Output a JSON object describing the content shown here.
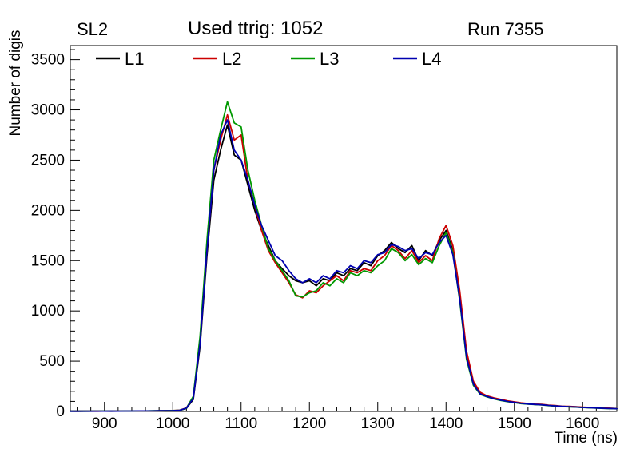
{
  "header": {
    "left": "SL2",
    "center": "Used ttrig: 1052",
    "right": "Run 7355"
  },
  "axes": {
    "x_title": "Time (ns)",
    "y_title": "Number of digis",
    "x_ticks": [
      900,
      1000,
      1100,
      1200,
      1300,
      1400,
      1500,
      1600
    ],
    "y_ticks": [
      0,
      500,
      1000,
      1500,
      2000,
      2500,
      3000,
      3500
    ]
  },
  "chart_data": {
    "type": "line",
    "title": "Used ttrig: 1052",
    "xlabel": "Time (ns)",
    "ylabel": "Number of digis",
    "xlim": [
      850,
      1650
    ],
    "ylim": [
      0,
      3640
    ],
    "grid": false,
    "legend_position": "top",
    "x": [
      850,
      860,
      870,
      880,
      890,
      900,
      910,
      920,
      930,
      940,
      950,
      960,
      970,
      980,
      990,
      1000,
      1010,
      1020,
      1030,
      1040,
      1050,
      1060,
      1070,
      1080,
      1090,
      1100,
      1110,
      1120,
      1130,
      1140,
      1150,
      1160,
      1170,
      1180,
      1190,
      1200,
      1210,
      1220,
      1230,
      1240,
      1250,
      1260,
      1270,
      1280,
      1290,
      1300,
      1310,
      1320,
      1330,
      1340,
      1350,
      1360,
      1370,
      1380,
      1390,
      1400,
      1410,
      1420,
      1430,
      1440,
      1450,
      1460,
      1470,
      1480,
      1490,
      1500,
      1510,
      1520,
      1530,
      1540,
      1550,
      1560,
      1570,
      1580,
      1590,
      1600,
      1610,
      1620,
      1630,
      1640,
      1650
    ],
    "series": [
      {
        "name": "L1",
        "color": "#000000",
        "values": [
          2,
          2,
          3,
          2,
          3,
          3,
          2,
          3,
          4,
          3,
          4,
          5,
          4,
          5,
          6,
          8,
          10,
          30,
          120,
          650,
          1550,
          2300,
          2600,
          2850,
          2550,
          2500,
          2250,
          2000,
          1800,
          1650,
          1500,
          1420,
          1350,
          1300,
          1280,
          1300,
          1250,
          1320,
          1300,
          1380,
          1350,
          1420,
          1400,
          1480,
          1450,
          1550,
          1600,
          1680,
          1620,
          1580,
          1650,
          1500,
          1600,
          1550,
          1700,
          1800,
          1600,
          1150,
          550,
          280,
          180,
          150,
          130,
          115,
          100,
          90,
          80,
          75,
          70,
          68,
          60,
          55,
          50,
          48,
          45,
          40,
          38,
          35,
          32,
          30,
          28
        ]
      },
      {
        "name": "L2",
        "color": "#cc0000",
        "values": [
          3,
          2,
          3,
          3,
          2,
          3,
          3,
          4,
          3,
          4,
          5,
          4,
          5,
          6,
          7,
          9,
          12,
          35,
          140,
          700,
          1600,
          2400,
          2700,
          2950,
          2700,
          2750,
          2300,
          2050,
          1800,
          1600,
          1480,
          1380,
          1280,
          1160,
          1130,
          1200,
          1180,
          1250,
          1300,
          1350,
          1300,
          1400,
          1380,
          1420,
          1400,
          1500,
          1550,
          1650,
          1600,
          1520,
          1600,
          1480,
          1550,
          1500,
          1720,
          1850,
          1650,
          1200,
          600,
          300,
          190,
          155,
          135,
          120,
          105,
          95,
          85,
          78,
          72,
          70,
          62,
          58,
          52,
          50,
          46,
          42,
          40,
          36,
          33,
          31,
          29
        ]
      },
      {
        "name": "L3",
        "color": "#009900",
        "values": [
          2,
          3,
          2,
          3,
          3,
          4,
          3,
          3,
          4,
          4,
          5,
          5,
          6,
          6,
          7,
          9,
          11,
          32,
          150,
          750,
          1700,
          2500,
          2800,
          3080,
          2870,
          2830,
          2400,
          2100,
          1850,
          1620,
          1500,
          1400,
          1300,
          1150,
          1140,
          1180,
          1200,
          1280,
          1250,
          1320,
          1280,
          1380,
          1350,
          1400,
          1380,
          1450,
          1500,
          1620,
          1580,
          1500,
          1560,
          1460,
          1520,
          1480,
          1650,
          1780,
          1580,
          1100,
          520,
          260,
          170,
          145,
          125,
          110,
          98,
          88,
          78,
          72,
          68,
          65,
          58,
          54,
          48,
          46,
          43,
          39,
          36,
          33,
          30,
          28,
          26
        ]
      },
      {
        "name": "L4",
        "color": "#0000b0",
        "values": [
          2,
          2,
          3,
          3,
          3,
          3,
          4,
          3,
          4,
          4,
          5,
          5,
          5,
          6,
          7,
          8,
          11,
          33,
          130,
          680,
          1600,
          2400,
          2750,
          2900,
          2600,
          2500,
          2300,
          2050,
          1850,
          1700,
          1550,
          1500,
          1400,
          1320,
          1280,
          1320,
          1280,
          1350,
          1320,
          1400,
          1380,
          1450,
          1420,
          1500,
          1480,
          1560,
          1580,
          1660,
          1640,
          1600,
          1620,
          1520,
          1580,
          1560,
          1680,
          1750,
          1560,
          1120,
          540,
          270,
          175,
          148,
          128,
          112,
          100,
          90,
          80,
          74,
          70,
          66,
          60,
          55,
          50,
          47,
          44,
          40,
          37,
          34,
          31,
          29,
          27
        ]
      }
    ]
  }
}
